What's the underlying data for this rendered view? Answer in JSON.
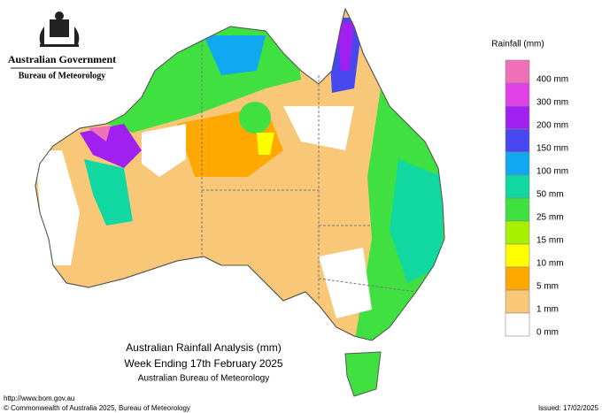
{
  "header": {
    "government": "Australian Government",
    "bureau": "Bureau of Meteorology"
  },
  "legend": {
    "title": "Rainfall (mm)",
    "items": [
      {
        "label": "400 mm",
        "color": "#f070b8"
      },
      {
        "label": "300 mm",
        "color": "#e040e8"
      },
      {
        "label": "200 mm",
        "color": "#a020f0"
      },
      {
        "label": "150 mm",
        "color": "#4848f0"
      },
      {
        "label": "100 mm",
        "color": "#10a8f0"
      },
      {
        "label": "50 mm",
        "color": "#10d8a0"
      },
      {
        "label": "25 mm",
        "color": "#40e040"
      },
      {
        "label": "15 mm",
        "color": "#a8f000"
      },
      {
        "label": "10 mm",
        "color": "#ffff00"
      },
      {
        "label": "5 mm",
        "color": "#ffa800"
      },
      {
        "label": "1 mm",
        "color": "#f8c878"
      },
      {
        "label": "0 mm",
        "color": "#ffffff"
      }
    ]
  },
  "map_title": {
    "line1": "Australian Rainfall Analysis (mm)",
    "line2": "Week Ending 17th February 2025",
    "line3": "Australian Bureau of Meteorology"
  },
  "footer": {
    "url": "http://www.bom.gov.au",
    "copyright": "© Commonwealth of Australia 2025, Bureau of Meteorology",
    "issued": "Issued: 17/02/2025"
  }
}
